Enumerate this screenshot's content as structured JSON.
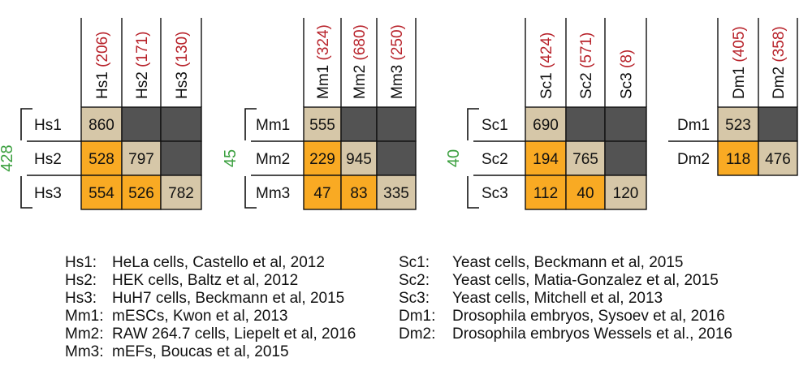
{
  "colors": {
    "diagonal": "#d6c7a8",
    "overlap": "#f9aa23",
    "upper": "#535353",
    "count": "#b8232b",
    "side": "#3a9f3e"
  },
  "matrices": [
    {
      "side_value": "428",
      "labels": [
        "Hs1",
        "Hs2",
        "Hs3"
      ],
      "col_counts": [
        "(206)",
        "(171)",
        "(130)"
      ],
      "cells": [
        [
          "860",
          "",
          ""
        ],
        [
          "528",
          "797",
          ""
        ],
        [
          "554",
          "526",
          "782"
        ]
      ]
    },
    {
      "side_value": "45",
      "labels": [
        "Mm1",
        "Mm2",
        "Mm3"
      ],
      "col_counts": [
        "(324)",
        "(680)",
        "(250)"
      ],
      "cells": [
        [
          "555",
          "",
          ""
        ],
        [
          "229",
          "945",
          ""
        ],
        [
          "47",
          "83",
          "335"
        ]
      ]
    },
    {
      "side_value": "40",
      "labels": [
        "Sc1",
        "Sc2",
        "Sc3"
      ],
      "col_counts": [
        "(424)",
        "(571)",
        "(8)"
      ],
      "cells": [
        [
          "690",
          "",
          ""
        ],
        [
          "194",
          "765",
          ""
        ],
        [
          "112",
          "40",
          "120"
        ]
      ]
    },
    {
      "side_value": "",
      "labels": [
        "Dm1",
        "Dm2"
      ],
      "col_counts": [
        "(405)",
        "(358)"
      ],
      "cells": [
        [
          "523",
          ""
        ],
        [
          "118",
          "476"
        ]
      ]
    }
  ],
  "legend_left": [
    {
      "code": "Hs1:",
      "text": "HeLa cells,  Castello et al, 2012"
    },
    {
      "code": "Hs2:",
      "text": "HEK cells, Baltz et al, 2012"
    },
    {
      "code": "Hs3:",
      "text": "HuH7 cells, Beckmann et al, 2015"
    },
    {
      "code": "Mm1:",
      "text": "mESCs, Kwon et al, 2013"
    },
    {
      "code": "Mm2:",
      "text": "RAW 264.7 cells, Liepelt et al, 2016"
    },
    {
      "code": "Mm3:",
      "text": "mEFs, Boucas et al, 2015"
    }
  ],
  "legend_right": [
    {
      "code": "Sc1:",
      "text": "Yeast cells, Beckmann et al, 2015"
    },
    {
      "code": "Sc2:",
      "text": "Yeast cells, Matia-Gonzalez et al, 2015"
    },
    {
      "code": "Sc3:",
      "text": "Yeast cells, Mitchell et al, 2013"
    },
    {
      "code": "Dm1:",
      "text": "Drosophila embryos, Sysoev et al, 2016"
    },
    {
      "code": "Dm2:",
      "text": "Drosophila embryos Wessels et al., 2016"
    }
  ]
}
